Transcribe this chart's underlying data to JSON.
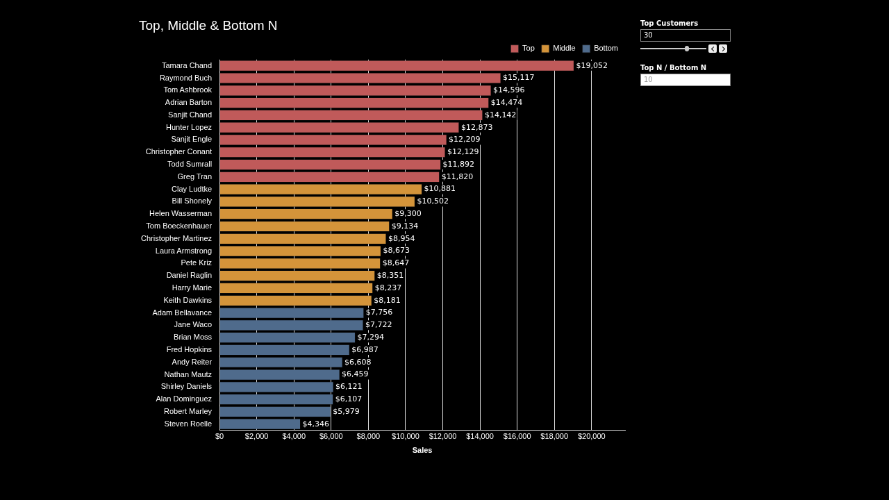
{
  "chart_data": {
    "type": "bar",
    "orientation": "horizontal",
    "title": "Top, Middle & Bottom N",
    "xlabel": "Sales",
    "categories": [
      "Tamara Chand",
      "Raymond Buch",
      "Tom Ashbrook",
      "Adrian Barton",
      "Sanjit Chand",
      "Hunter Lopez",
      "Sanjit Engle",
      "Christopher Conant",
      "Todd Sumrall",
      "Greg Tran",
      "Clay Ludtke",
      "Bill Shonely",
      "Helen Wasserman",
      "Tom Boeckenhauer",
      "Christopher Martinez",
      "Laura Armstrong",
      "Pete Kriz",
      "Daniel Raglin",
      "Harry Marie",
      "Keith Dawkins",
      "Adam Bellavance",
      "Jane Waco",
      "Brian Moss",
      "Fred Hopkins",
      "Andy Reiter",
      "Nathan Mautz",
      "Shirley Daniels",
      "Alan Dominguez",
      "Robert Marley",
      "Steven Roelle"
    ],
    "series": [
      {
        "name": "Top",
        "color": "#c05a5a",
        "values": [
          19052,
          15117,
          14596,
          14474,
          14142,
          12873,
          12209,
          12129,
          11892,
          11820,
          null,
          null,
          null,
          null,
          null,
          null,
          null,
          null,
          null,
          null,
          null,
          null,
          null,
          null,
          null,
          null,
          null,
          null,
          null,
          null
        ],
        "value_labels": [
          "$19,052",
          "$15,117",
          "$14,596",
          "$14,474",
          "$14,142",
          "$12,873",
          "$12,209",
          "$12,129",
          "$11,892",
          "$11,820",
          null,
          null,
          null,
          null,
          null,
          null,
          null,
          null,
          null,
          null,
          null,
          null,
          null,
          null,
          null,
          null,
          null,
          null,
          null,
          null
        ]
      },
      {
        "name": "Middle",
        "color": "#d4943a",
        "values": [
          null,
          null,
          null,
          null,
          null,
          null,
          null,
          null,
          null,
          null,
          10881,
          10502,
          9300,
          9134,
          8954,
          8673,
          8647,
          8351,
          8237,
          8181,
          null,
          null,
          null,
          null,
          null,
          null,
          null,
          null,
          null,
          null
        ],
        "value_labels": [
          null,
          null,
          null,
          null,
          null,
          null,
          null,
          null,
          null,
          null,
          "$10,881",
          "$10,502",
          "$9,300",
          "$9,134",
          "$8,954",
          "$8,673",
          "$8,647",
          "$8,351",
          "$8,237",
          "$8,181",
          null,
          null,
          null,
          null,
          null,
          null,
          null,
          null,
          null,
          null
        ]
      },
      {
        "name": "Bottom",
        "color": "#4f6b8c",
        "values": [
          null,
          null,
          null,
          null,
          null,
          null,
          null,
          null,
          null,
          null,
          null,
          null,
          null,
          null,
          null,
          null,
          null,
          null,
          null,
          null,
          7756,
          7722,
          7294,
          6987,
          6608,
          6459,
          6121,
          6107,
          5979,
          4346
        ],
        "value_labels": [
          null,
          null,
          null,
          null,
          null,
          null,
          null,
          null,
          null,
          null,
          null,
          null,
          null,
          null,
          null,
          null,
          null,
          null,
          null,
          null,
          "$7,756",
          "$7,722",
          "$7,294",
          "$6,987",
          "$6,608",
          "$6,459",
          "$6,121",
          "$6,107",
          "$5,979",
          "$4,346"
        ]
      }
    ],
    "xlim": [
      0,
      21800
    ],
    "xticks": [
      {
        "value": 0,
        "label": "$0"
      },
      {
        "value": 2000,
        "label": "$2,000"
      },
      {
        "value": 4000,
        "label": "$4,000"
      },
      {
        "value": 6000,
        "label": "$6,000"
      },
      {
        "value": 8000,
        "label": "$8,000"
      },
      {
        "value": 10000,
        "label": "$10,000"
      },
      {
        "value": 12000,
        "label": "$12,000"
      },
      {
        "value": 14000,
        "label": "$14,000"
      },
      {
        "value": 16000,
        "label": "$16,000"
      },
      {
        "value": 18000,
        "label": "$18,000"
      },
      {
        "value": 20000,
        "label": "$20,000"
      }
    ],
    "grid": "x",
    "legend": "top right",
    "annotations": [
      "Top Customers",
      "30",
      "Top N / Bottom N",
      "10"
    ]
  }
}
